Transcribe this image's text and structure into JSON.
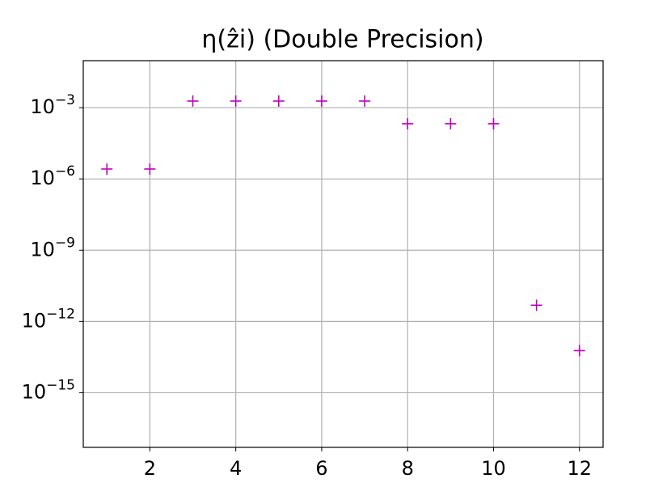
{
  "chart_data": {
    "type": "scatter",
    "title": "η(ẑi) (Double Precision)",
    "x": [
      1,
      2,
      3,
      4,
      5,
      6,
      7,
      8,
      9,
      10,
      11,
      12
    ],
    "series": [
      {
        "color": "#bf00bf",
        "values": [
          2.6e-06,
          2.6e-06,
          0.0019,
          0.0019,
          0.0019,
          0.0019,
          0.0019,
          0.00021,
          0.00021,
          0.00021,
          4.8e-12,
          5.9e-14
        ]
      }
    ],
    "xlim": [
      0.45,
      12.55
    ],
    "xticks": [
      2,
      4,
      6,
      8,
      10,
      12
    ],
    "ylim": [
      5e-18,
      0.095
    ],
    "ylog": true,
    "yticks": [
      {
        "value": 0.001,
        "label": "10−3"
      },
      {
        "value": 1e-06,
        "label": "10−6"
      },
      {
        "value": 1e-09,
        "label": "10−9"
      },
      {
        "value": 1e-12,
        "label": "10−12"
      },
      {
        "value": 1e-15,
        "label": "10−15"
      }
    ],
    "grid": true
  }
}
